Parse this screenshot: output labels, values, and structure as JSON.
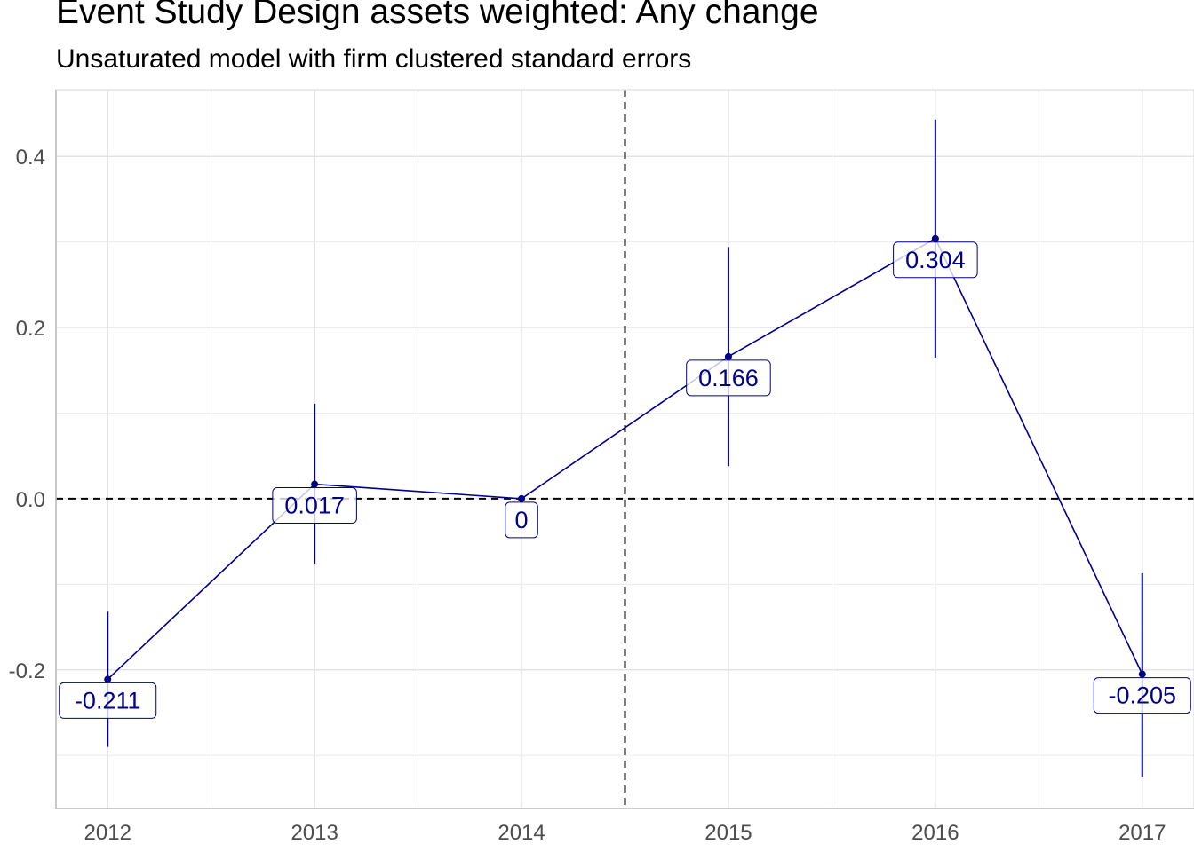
{
  "chart_data": {
    "type": "line",
    "title": "Event Study Design assets weighted: Any change",
    "subtitle": "Unsaturated model with firm clustered standard errors",
    "xlabel": "",
    "ylabel": "",
    "x": [
      "2012",
      "2013",
      "2014",
      "2015",
      "2016",
      "2017"
    ],
    "series": [
      {
        "values": [
          -0.211,
          0.017,
          0,
          0.166,
          0.304,
          -0.205
        ],
        "lower": [
          -0.29,
          -0.077,
          0,
          0.038,
          0.165,
          -0.325
        ],
        "upper": [
          -0.132,
          0.111,
          0,
          0.294,
          0.443,
          -0.087
        ],
        "labels": [
          "-0.211",
          "0.017",
          "0",
          "0.166",
          "0.304",
          "-0.205"
        ]
      }
    ],
    "x_range": [
      2011.75,
      2017.25
    ],
    "ylim": [
      -0.362,
      0.478
    ],
    "yticks": [
      -0.2,
      0.0,
      0.2,
      0.4
    ],
    "ytick_labels": [
      "-0.2",
      "0.0",
      "0.2",
      "0.4"
    ],
    "hline_y": 0,
    "vline_x": 2014.5,
    "grid": true,
    "color": "#00008B"
  }
}
